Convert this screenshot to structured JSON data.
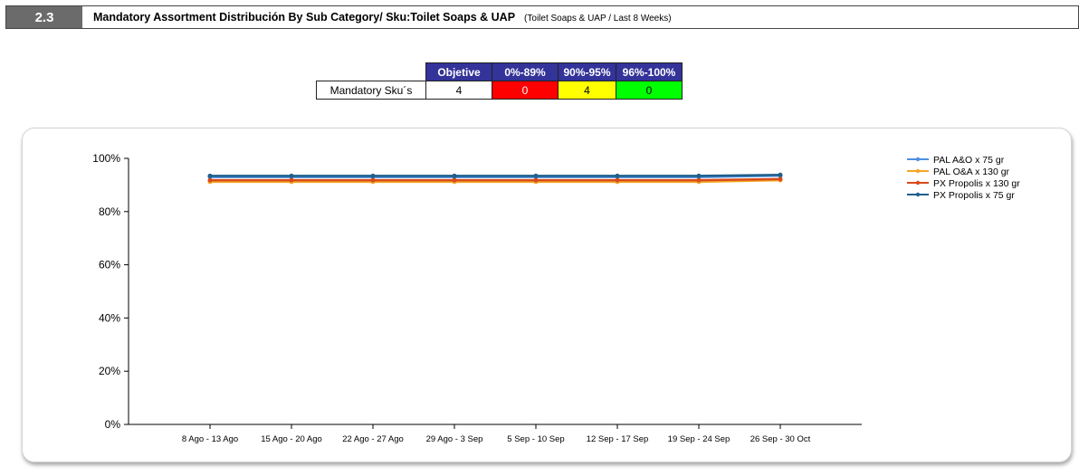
{
  "header": {
    "section_number": "2.3",
    "title": "Mandatory Assortment Distribución By Sub Category/ Sku:Toilet Soaps & UAP",
    "subtitle": "(Toilet Soaps & UAP / Last 8 Weeks)"
  },
  "summary_table": {
    "row_label": "Mandatory Sku´s",
    "columns": [
      {
        "label": "Objetive",
        "value": "4",
        "color": "#ffffff"
      },
      {
        "label": "0%-89%",
        "value": "0",
        "color": "#ff0000"
      },
      {
        "label": "90%-95%",
        "value": "4",
        "color": "#ffff00"
      },
      {
        "label": "96%-100%",
        "value": "0",
        "color": "#00ff00"
      }
    ]
  },
  "chart_data": {
    "type": "line",
    "categories": [
      "8 Ago - 13 Ago",
      "15 Ago - 20 Ago",
      "22 Ago - 27 Ago",
      "29 Ago - 3 Sep",
      "5 Sep - 10 Sep",
      "12 Sep - 17 Sep",
      "19 Sep - 24 Sep",
      "26 Sep - 30 Oct"
    ],
    "ylim": [
      0,
      100
    ],
    "yticks": [
      "0%",
      "20%",
      "40%",
      "60%",
      "80%",
      "100%"
    ],
    "ytick_values": [
      0,
      20,
      40,
      60,
      80,
      100
    ],
    "legend_position": "right",
    "series": [
      {
        "name": "PAL A&O x 75 gr",
        "color": "#4f8fe0",
        "values": [
          93,
          93,
          93,
          93,
          93,
          93,
          93,
          93.5
        ]
      },
      {
        "name": "PAL O&A  x 130 gr",
        "color": "#f5a623",
        "values": [
          91.2,
          91.2,
          91.2,
          91.2,
          91.2,
          91.2,
          91.2,
          91.8
        ]
      },
      {
        "name": "PX Propolis x 130 gr",
        "color": "#d84a1b",
        "values": [
          91.8,
          91.8,
          91.8,
          91.8,
          91.8,
          91.8,
          91.8,
          92.2
        ]
      },
      {
        "name": "PX Propolis x 75 gr",
        "color": "#1f5f8b",
        "values": [
          93.4,
          93.4,
          93.4,
          93.4,
          93.4,
          93.4,
          93.4,
          93.8
        ]
      }
    ]
  }
}
